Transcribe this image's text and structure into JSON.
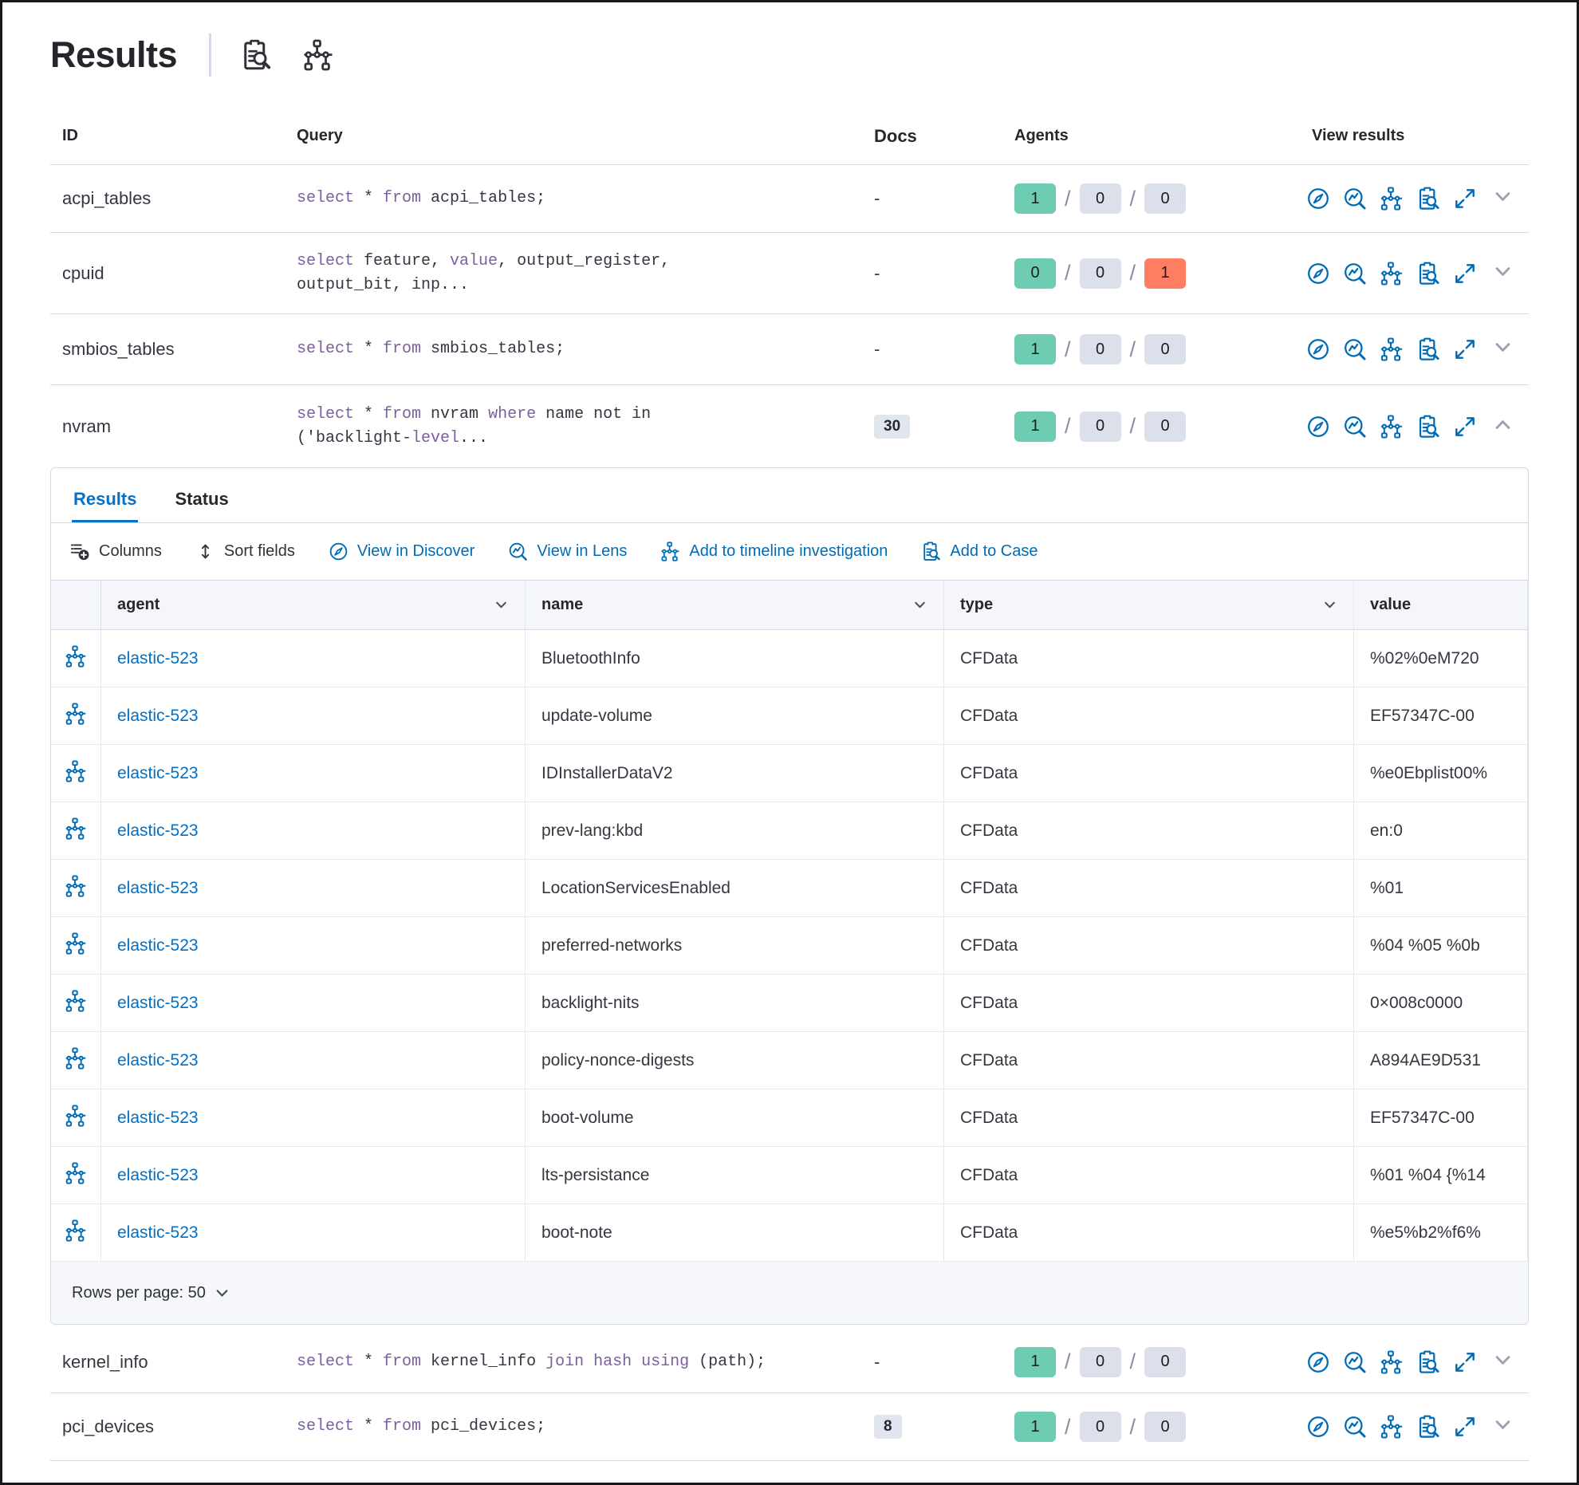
{
  "colors": {
    "primary_blue": "#006bb4",
    "link_blue": "#0071c2",
    "keyword_purple": "#7c609e",
    "badge_green": "#6dccb1",
    "badge_gray": "#dbe0ea",
    "badge_red": "#ff7e62"
  },
  "header": {
    "title": "Results",
    "icons": [
      "inspect-clipboard-icon",
      "timeline-icon"
    ]
  },
  "table": {
    "columns": {
      "id": "ID",
      "query": "Query",
      "docs": "Docs",
      "agents": "Agents",
      "view": "View results"
    },
    "agents_separator": "/"
  },
  "queries": [
    {
      "id": "acpi_tables",
      "query_lines": [
        [
          {
            "t": "select",
            "k": true
          },
          {
            "t": " * ",
            "k": false
          },
          {
            "t": "from",
            "k": true
          },
          {
            "t": " acpi_tables;",
            "k": false
          }
        ]
      ],
      "docs": "-",
      "agents": [
        "1",
        "0",
        "0"
      ]
    },
    {
      "id": "cpuid",
      "query_lines": [
        [
          {
            "t": "select",
            "k": true
          },
          {
            "t": " feature, ",
            "k": false
          },
          {
            "t": "value",
            "k": true
          },
          {
            "t": ", output_register,",
            "k": false
          }
        ],
        [
          {
            "t": "output_bit, inp...",
            "k": false
          }
        ]
      ],
      "docs": "-",
      "agents": [
        "0",
        "0",
        "1"
      ]
    },
    {
      "id": "smbios_tables",
      "query_lines": [
        [
          {
            "t": "select",
            "k": true
          },
          {
            "t": " * ",
            "k": false
          },
          {
            "t": "from",
            "k": true
          },
          {
            "t": " smbios_tables;",
            "k": false
          }
        ]
      ],
      "docs": "-",
      "agents": [
        "1",
        "0",
        "0"
      ]
    },
    {
      "id": "nvram",
      "query_lines": [
        [
          {
            "t": "select",
            "k": true
          },
          {
            "t": " * ",
            "k": false
          },
          {
            "t": "from",
            "k": true
          },
          {
            "t": " nvram ",
            "k": false
          },
          {
            "t": "where",
            "k": true
          },
          {
            "t": " name not in",
            "k": false
          }
        ],
        [
          {
            "t": "('backlight-",
            "k": false
          },
          {
            "t": "level",
            "k": true
          },
          {
            "t": "...",
            "k": false
          }
        ]
      ],
      "docs": "30",
      "agents": [
        "1",
        "0",
        "0"
      ]
    },
    {
      "id": "kernel_info",
      "query_lines": [
        [
          {
            "t": "select",
            "k": true
          },
          {
            "t": " * ",
            "k": false
          },
          {
            "t": "from",
            "k": true
          },
          {
            "t": " kernel_info ",
            "k": false
          },
          {
            "t": "join",
            "k": true
          },
          {
            "t": " ",
            "k": false
          },
          {
            "t": "hash",
            "k": true
          },
          {
            "t": " ",
            "k": false
          },
          {
            "t": "using",
            "k": true
          },
          {
            "t": " (path);",
            "k": false
          }
        ]
      ],
      "docs": "-",
      "agents": [
        "1",
        "0",
        "0"
      ]
    },
    {
      "id": "pci_devices",
      "query_lines": [
        [
          {
            "t": "select",
            "k": true
          },
          {
            "t": " * ",
            "k": false
          },
          {
            "t": "from",
            "k": true
          },
          {
            "t": " pci_devices;",
            "k": false
          }
        ]
      ],
      "docs": "8",
      "agents": [
        "1",
        "0",
        "0"
      ]
    }
  ],
  "expanded_panel": {
    "tabs": [
      {
        "label": "Results"
      },
      {
        "label": "Status"
      }
    ],
    "toolbar": {
      "columns": "Columns",
      "sort_fields": "Sort fields",
      "view_in_discover": "View in Discover",
      "view_in_lens": "View in Lens",
      "add_to_timeline": "Add to timeline investigation",
      "add_to_case": "Add to Case"
    },
    "grid": {
      "columns": [
        "agent",
        "name",
        "type",
        "value"
      ],
      "rows": [
        {
          "agent": "elastic-523",
          "name": "BluetoothInfo",
          "type": "CFData",
          "value": "%02%0eM720"
        },
        {
          "agent": "elastic-523",
          "name": "update-volume",
          "type": "CFData",
          "value": "EF57347C-00"
        },
        {
          "agent": "elastic-523",
          "name": "IDInstallerDataV2",
          "type": "CFData",
          "value": "%e0Ebplist00%"
        },
        {
          "agent": "elastic-523",
          "name": "prev-lang:kbd",
          "type": "CFData",
          "value": "en:0"
        },
        {
          "agent": "elastic-523",
          "name": "LocationServicesEnabled",
          "type": "CFData",
          "value": "%01"
        },
        {
          "agent": "elastic-523",
          "name": "preferred-networks",
          "type": "CFData",
          "value": "%04 %05 %0b"
        },
        {
          "agent": "elastic-523",
          "name": "backlight-nits",
          "type": "CFData",
          "value": "0×008c0000"
        },
        {
          "agent": "elastic-523",
          "name": "policy-nonce-digests",
          "type": "CFData",
          "value": "A894AE9D531"
        },
        {
          "agent": "elastic-523",
          "name": "boot-volume",
          "type": "CFData",
          "value": "EF57347C-00"
        },
        {
          "agent": "elastic-523",
          "name": "lts-persistance",
          "type": "CFData",
          "value": "%01 %04 {%14"
        },
        {
          "agent": "elastic-523",
          "name": "boot-note",
          "type": "CFData",
          "value": "%e5%b2%f6%"
        }
      ]
    },
    "footer": {
      "rows_per_page": "Rows per page: 50"
    }
  }
}
